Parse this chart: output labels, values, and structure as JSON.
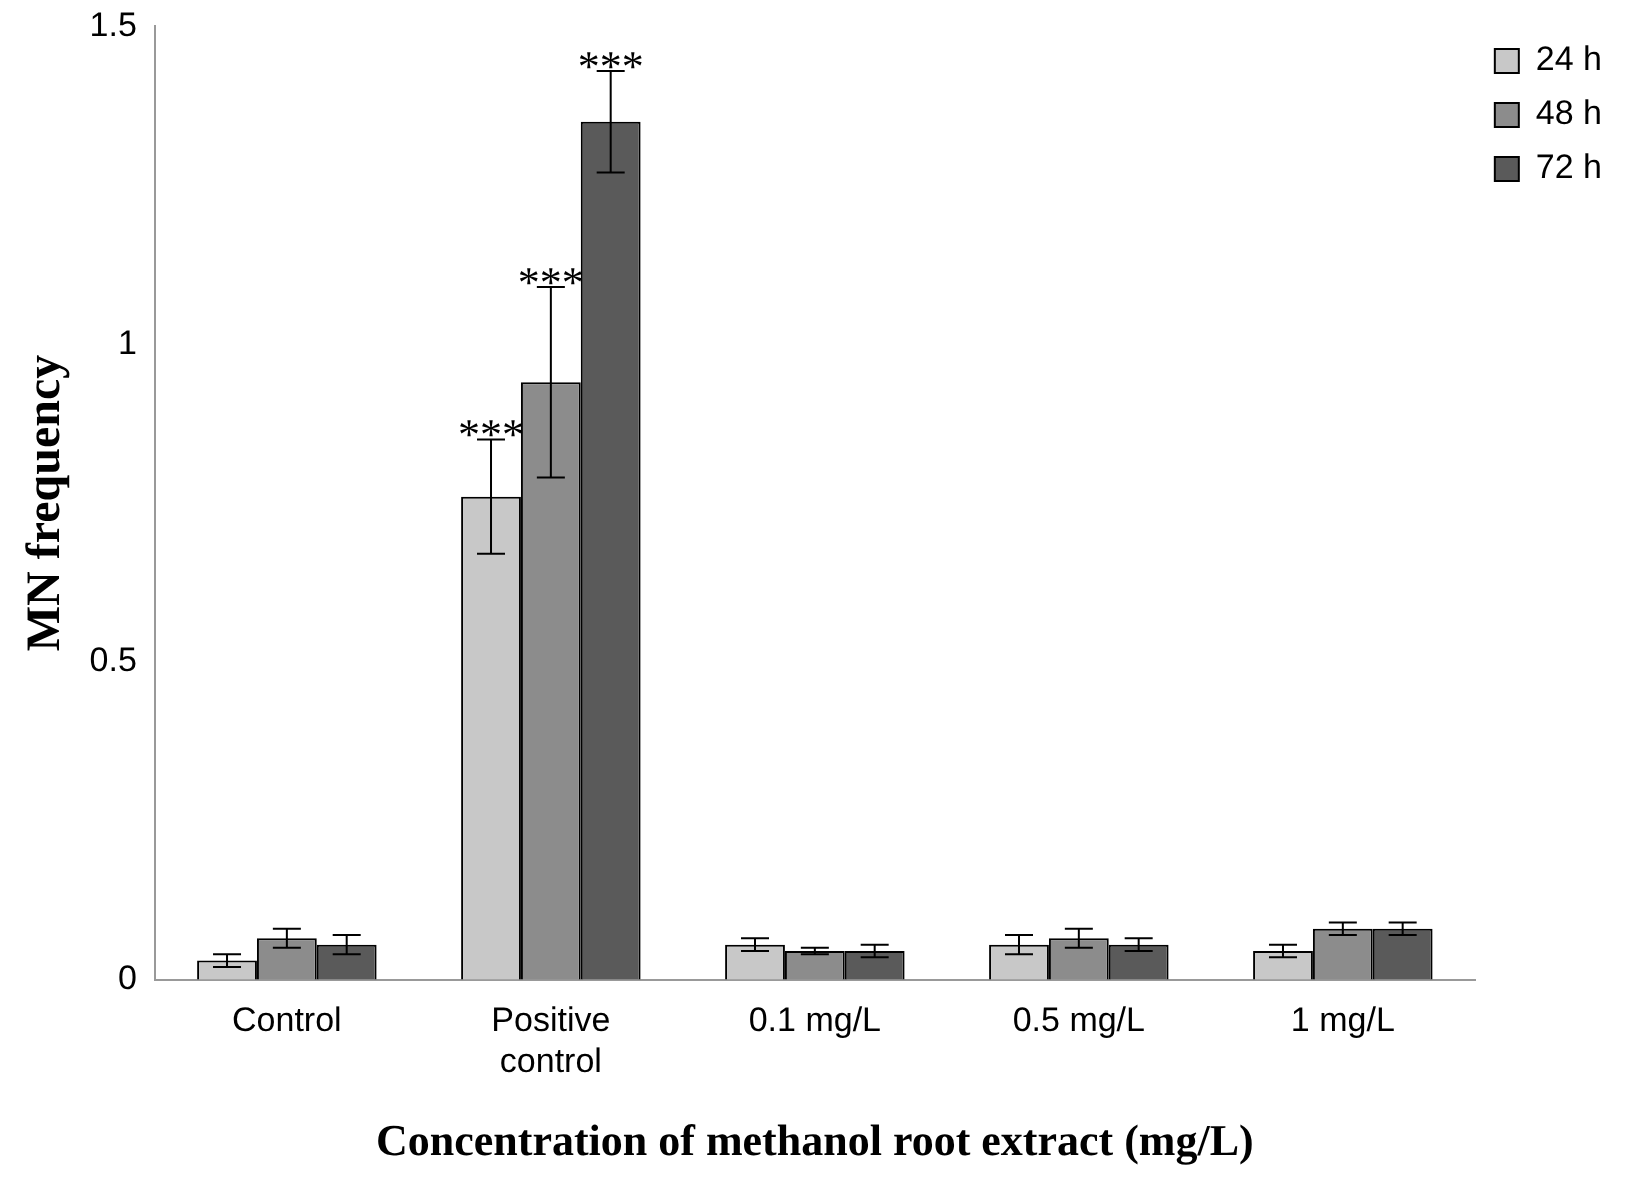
{
  "chart_data": {
    "type": "bar",
    "xlabel": "Concentration of methanol root extract (mg/L)",
    "ylabel": "MN frequency",
    "categories": [
      "Control",
      "Positive control",
      "0.1 mg/L",
      "0.5 mg/L",
      "1 mg/L"
    ],
    "series": [
      {
        "name": "24 h",
        "color": "#c8c8c8",
        "values": [
          0.03,
          0.76,
          0.055,
          0.055,
          0.045
        ],
        "errors": [
          0.01,
          0.09,
          0.01,
          0.015,
          0.01
        ]
      },
      {
        "name": "48 h",
        "color": "#8c8c8c",
        "values": [
          0.065,
          0.94,
          0.045,
          0.065,
          0.08
        ],
        "errors": [
          0.015,
          0.15,
          0.005,
          0.015,
          0.01
        ]
      },
      {
        "name": "72 h",
        "color": "#5a5a5a",
        "values": [
          0.055,
          1.35,
          0.045,
          0.055,
          0.08
        ],
        "errors": [
          0.015,
          0.08,
          0.01,
          0.01,
          0.01
        ]
      }
    ],
    "ylim": [
      0,
      1.5
    ],
    "yticks": [
      0,
      0.5,
      1,
      1.5
    ],
    "grid": false,
    "legend": "top right",
    "annotations": [
      "***",
      "***",
      "***"
    ]
  }
}
